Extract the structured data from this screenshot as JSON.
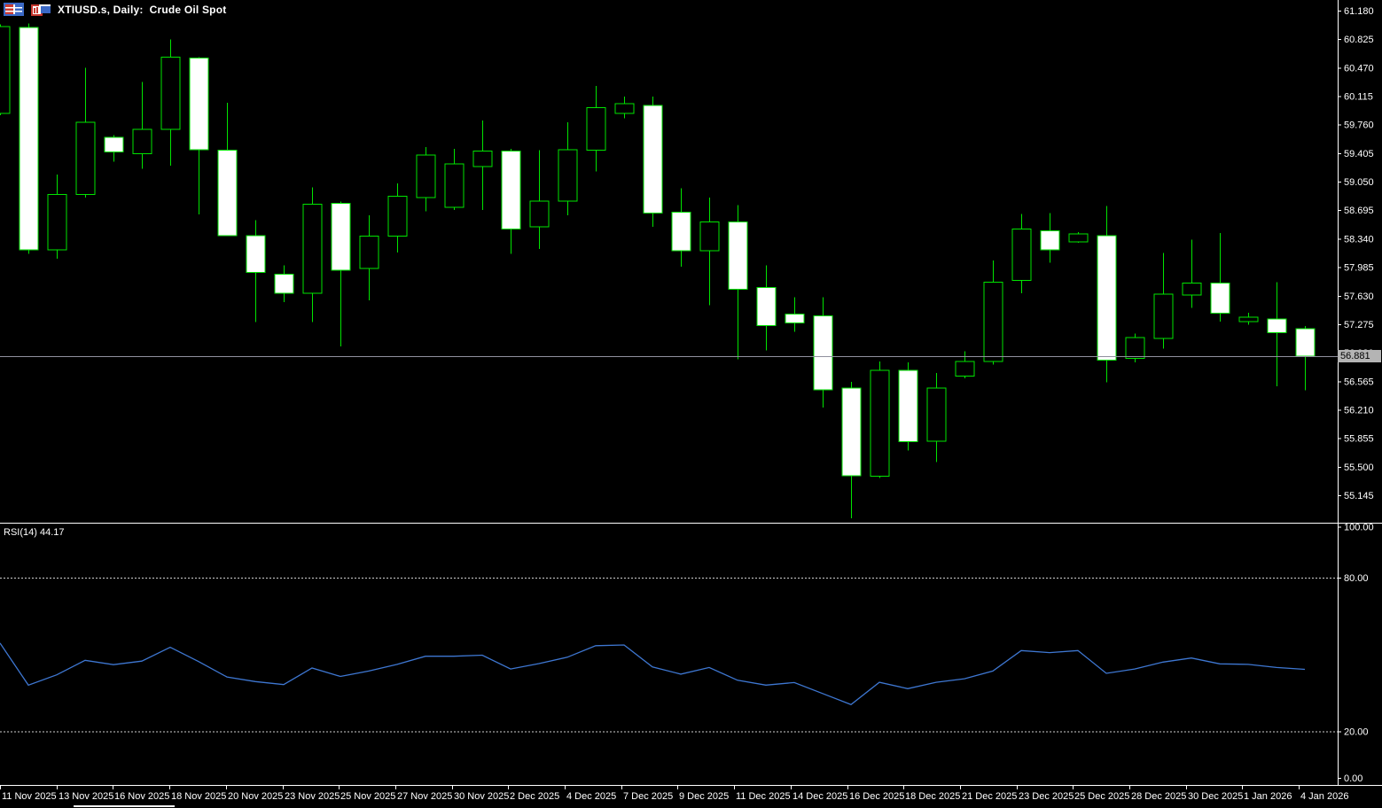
{
  "window": {
    "title": "XTIUSD.s, Daily:  Crude Oil Spot",
    "icons": [
      "quotes-table-icon",
      "chart-window-icon"
    ]
  },
  "colors": {
    "background": "#000000",
    "candle_outline": "#00E400",
    "bull_fill": "#000000",
    "bear_fill": "#FFFFFF",
    "rsi_line": "#3E77D2",
    "level_dashed": "#D0D0D0",
    "axis_text": "#FFFFFF",
    "separator": "#FFFFFF",
    "current_price_line": "#90909E",
    "price_tag_bg": "#B4B4B4",
    "price_tag_text": "#000000"
  },
  "price_axis": {
    "ticks": [
      61.18,
      60.825,
      60.47,
      60.115,
      59.76,
      59.405,
      59.05,
      58.695,
      58.34,
      57.985,
      57.63,
      57.275,
      56.92,
      56.565,
      56.21,
      55.855,
      55.5,
      55.145
    ],
    "current_price": "56.881"
  },
  "time_axis": {
    "labels": [
      "11 Nov 2025",
      "13 Nov 2025",
      "16 Nov 2025",
      "18 Nov 2025",
      "20 Nov 2025",
      "23 Nov 2025",
      "25 Nov 2025",
      "27 Nov 2025",
      "30 Nov 2025",
      "2 Dec 2025",
      "4 Dec 2025",
      "7 Dec 2025",
      "9 Dec 2025",
      "11 Dec 2025",
      "14 Dec 2025",
      "16 Dec 2025",
      "18 Dec 2025",
      "21 Dec 2025",
      "23 Dec 2025",
      "25 Dec 2025",
      "28 Dec 2025",
      "30 Dec 2025",
      "1 Jan 2026",
      "4 Jan 2026"
    ],
    "anchor_candle_index": 0,
    "candles_per_label": 2
  },
  "rsi_pane": {
    "label": "RSI(14) 44.17",
    "ticks": [
      100.0,
      80.0,
      20.0,
      0.0
    ],
    "levels": [
      80,
      20
    ]
  },
  "chart_data": {
    "type": "candlestick",
    "symbol": "XTIUSD.s",
    "timeframe": "Daily",
    "description": "Crude Oil Spot",
    "price_range_visible": [
      55.145,
      61.18
    ],
    "tick_step": 0.355,
    "current_price": 56.881,
    "grid": false,
    "candles": [
      {
        "o": 59.9,
        "h": 61.01,
        "l": 59.88,
        "c": 60.98
      },
      {
        "o": 60.97,
        "h": 61.02,
        "l": 58.15,
        "c": 58.2
      },
      {
        "o": 58.2,
        "h": 59.14,
        "l": 58.09,
        "c": 58.89
      },
      {
        "o": 58.89,
        "h": 60.47,
        "l": 58.85,
        "c": 59.79
      },
      {
        "o": 59.6,
        "h": 59.63,
        "l": 59.3,
        "c": 59.42
      },
      {
        "o": 59.4,
        "h": 60.29,
        "l": 59.21,
        "c": 59.7
      },
      {
        "o": 59.7,
        "h": 60.82,
        "l": 59.25,
        "c": 60.6
      },
      {
        "o": 60.59,
        "h": 60.6,
        "l": 58.64,
        "c": 59.45
      },
      {
        "o": 59.44,
        "h": 60.03,
        "l": 58.37,
        "c": 58.38
      },
      {
        "o": 58.38,
        "h": 58.57,
        "l": 57.3,
        "c": 57.92
      },
      {
        "o": 57.9,
        "h": 58.01,
        "l": 57.55,
        "c": 57.66
      },
      {
        "o": 57.66,
        "h": 58.98,
        "l": 57.3,
        "c": 58.77
      },
      {
        "o": 58.78,
        "h": 58.8,
        "l": 57.0,
        "c": 57.95
      },
      {
        "o": 57.97,
        "h": 58.63,
        "l": 57.57,
        "c": 58.37
      },
      {
        "o": 58.37,
        "h": 59.03,
        "l": 58.17,
        "c": 58.87
      },
      {
        "o": 58.85,
        "h": 59.48,
        "l": 58.68,
        "c": 59.38
      },
      {
        "o": 58.73,
        "h": 59.46,
        "l": 58.7,
        "c": 59.27
      },
      {
        "o": 59.24,
        "h": 59.81,
        "l": 58.7,
        "c": 59.43
      },
      {
        "o": 59.43,
        "h": 59.46,
        "l": 58.15,
        "c": 58.46
      },
      {
        "o": 58.49,
        "h": 59.44,
        "l": 58.21,
        "c": 58.81
      },
      {
        "o": 58.81,
        "h": 59.79,
        "l": 58.63,
        "c": 59.45
      },
      {
        "o": 59.44,
        "h": 60.24,
        "l": 59.18,
        "c": 59.97
      },
      {
        "o": 59.9,
        "h": 60.11,
        "l": 59.84,
        "c": 60.02
      },
      {
        "o": 60.0,
        "h": 60.11,
        "l": 58.49,
        "c": 58.66
      },
      {
        "o": 58.67,
        "h": 58.97,
        "l": 57.99,
        "c": 58.19
      },
      {
        "o": 58.19,
        "h": 58.85,
        "l": 57.51,
        "c": 58.55
      },
      {
        "o": 58.55,
        "h": 58.76,
        "l": 56.84,
        "c": 57.71
      },
      {
        "o": 57.73,
        "h": 58.01,
        "l": 56.95,
        "c": 57.26
      },
      {
        "o": 57.4,
        "h": 57.61,
        "l": 57.18,
        "c": 57.29
      },
      {
        "o": 57.38,
        "h": 57.61,
        "l": 56.24,
        "c": 56.46
      },
      {
        "o": 56.48,
        "h": 56.56,
        "l": 54.86,
        "c": 55.39
      },
      {
        "o": 55.38,
        "h": 56.81,
        "l": 55.36,
        "c": 56.7
      },
      {
        "o": 56.7,
        "h": 56.8,
        "l": 55.7,
        "c": 55.81
      },
      {
        "o": 55.82,
        "h": 56.67,
        "l": 55.56,
        "c": 56.48
      },
      {
        "o": 56.63,
        "h": 56.94,
        "l": 56.6,
        "c": 56.81
      },
      {
        "o": 56.81,
        "h": 58.07,
        "l": 56.77,
        "c": 57.8
      },
      {
        "o": 57.82,
        "h": 58.65,
        "l": 57.66,
        "c": 58.46
      },
      {
        "o": 58.44,
        "h": 58.66,
        "l": 58.04,
        "c": 58.2
      },
      {
        "o": 58.3,
        "h": 58.42,
        "l": 58.29,
        "c": 58.4
      },
      {
        "o": 58.38,
        "h": 58.75,
        "l": 56.55,
        "c": 56.83
      },
      {
        "o": 56.85,
        "h": 57.16,
        "l": 56.8,
        "c": 57.11
      },
      {
        "o": 57.1,
        "h": 58.16,
        "l": 56.97,
        "c": 57.65
      },
      {
        "o": 57.64,
        "h": 58.33,
        "l": 57.48,
        "c": 57.79
      },
      {
        "o": 57.79,
        "h": 58.41,
        "l": 57.31,
        "c": 57.41
      },
      {
        "o": 57.31,
        "h": 57.42,
        "l": 57.27,
        "c": 57.36
      },
      {
        "o": 57.34,
        "h": 57.8,
        "l": 56.5,
        "c": 57.17
      },
      {
        "o": 57.22,
        "h": 57.25,
        "l": 56.45,
        "c": 56.88
      }
    ],
    "rsi": {
      "period": 14,
      "current": 44.17,
      "range": [
        0,
        100
      ],
      "levels": [
        80,
        20
      ],
      "values": [
        54.4,
        38.0,
        42.0,
        47.7,
        46.0,
        47.4,
        52.8,
        47.2,
        41.2,
        39.4,
        38.2,
        44.7,
        41.4,
        43.5,
        46.1,
        49.3,
        49.3,
        49.7,
        44.3,
        46.4,
        48.9,
        53.4,
        53.7,
        45.1,
        42.3,
        44.9,
        39.9,
        38.0,
        39.0,
        34.7,
        30.4,
        39.1,
        36.6,
        39.1,
        40.5,
        43.5,
        51.5,
        50.7,
        51.5,
        42.6,
        44.3,
        47.0,
        48.6,
        46.3,
        46.1,
        44.9,
        44.17
      ]
    }
  }
}
